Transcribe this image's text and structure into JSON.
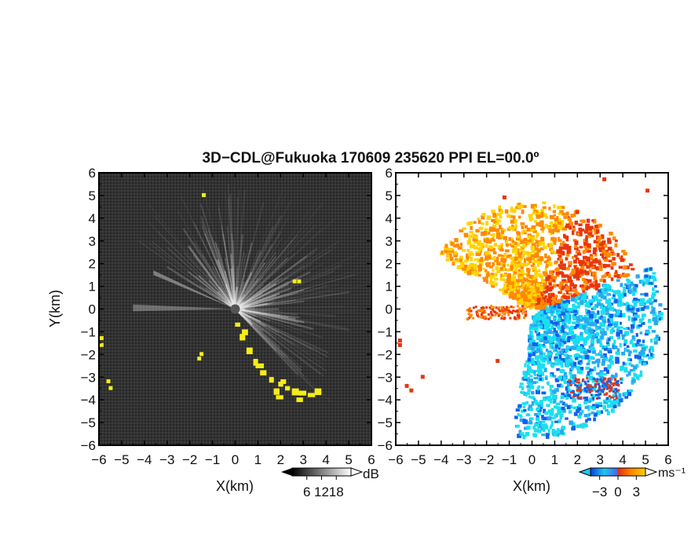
{
  "title": "3D−CDL@Fukuoka 170609 235620 PPI EL=00.0º",
  "colors": {
    "background": "#ffffff",
    "frame": "#000000",
    "snr_dark": "#2a2a2a",
    "snr_light": "#e8e8e8",
    "overlay_yellow": "#f4ec1a",
    "vel_cyan": "#19e0f0",
    "vel_blue": "#1060f0",
    "vel_red": "#e8360f",
    "vel_orange": "#ff8a00",
    "vel_yellow": "#ffd400"
  },
  "chart_data": [
    {
      "type": "heatmap",
      "name": "signal-to-noise ratio PPI",
      "xlabel": "X(km)",
      "ylabel": "Y(km)",
      "xlim": [
        -6,
        6
      ],
      "ylim": [
        -6,
        6
      ],
      "x_ticks": [
        "−6",
        "−5",
        "−4",
        "−3",
        "−2",
        "−1",
        "0",
        "1",
        "2",
        "3",
        "4",
        "5",
        "6"
      ],
      "y_ticks": [
        "6",
        "5",
        "4",
        "3",
        "2",
        "1",
        "0",
        "−1",
        "−2",
        "−3",
        "−4",
        "−5",
        "−6"
      ],
      "colorbar": {
        "unit": "dB",
        "ticks": [
          6,
          12,
          18
        ],
        "tick_labels": [
          "6",
          "12",
          "18"
        ],
        "range": [
          0,
          24
        ],
        "colors": [
          "#000000",
          "#ffffff"
        ]
      },
      "radar_origin": [
        0,
        0
      ]
    },
    {
      "type": "heatmap",
      "name": "radial velocity PPI",
      "xlabel": "X(km)",
      "ylabel": "",
      "xlim": [
        -6,
        6
      ],
      "ylim": [
        -6,
        6
      ],
      "x_ticks": [
        "−6",
        "−5",
        "−4",
        "−3",
        "−2",
        "−1",
        "0",
        "1",
        "2",
        "3",
        "4",
        "5",
        "6"
      ],
      "y_ticks": [
        "6",
        "5",
        "4",
        "3",
        "2",
        "1",
        "0",
        "−1",
        "−2",
        "−3",
        "−4",
        "−5",
        "−6"
      ],
      "colorbar": {
        "unit": "ms⁻¹",
        "ticks": [
          -3,
          0,
          3
        ],
        "tick_labels": [
          "−3",
          "0",
          "3"
        ],
        "range": [
          -4.5,
          4.5
        ],
        "colors": [
          "#0a3dd8",
          "#1fc8ee",
          "#e03010",
          "#ffd000"
        ]
      },
      "radar_origin": [
        0,
        0
      ]
    }
  ]
}
